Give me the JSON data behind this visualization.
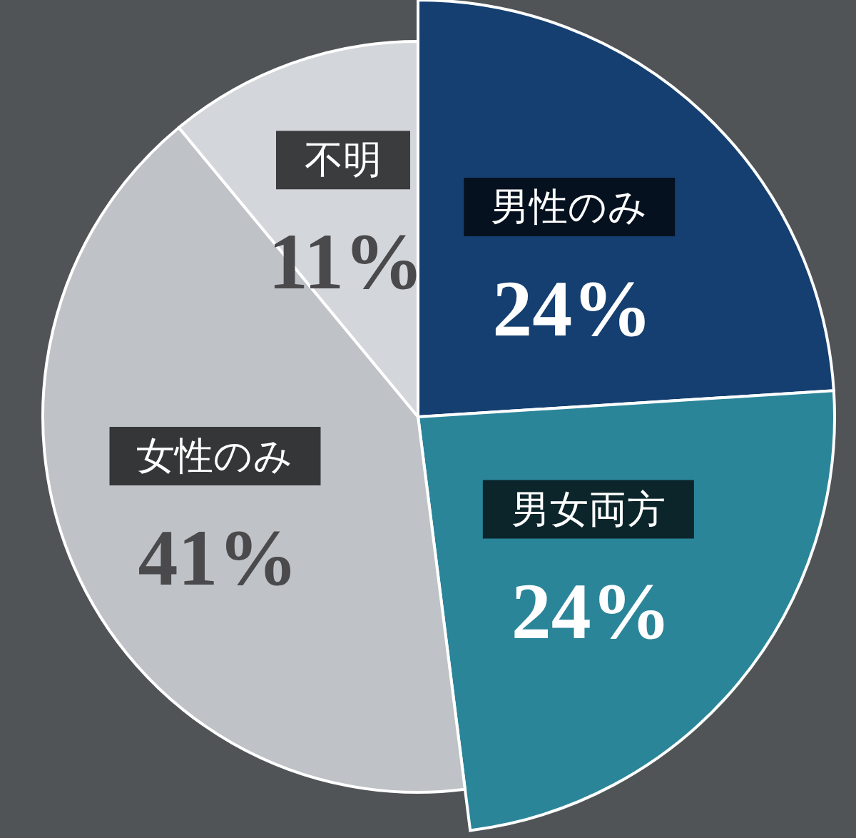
{
  "chart_data": {
    "type": "pie",
    "categories": [
      "男性のみ",
      "男女両方",
      "女性のみ",
      "不明"
    ],
    "values": [
      24,
      24,
      41,
      11
    ],
    "colors": [
      "#143f70",
      "#2a8599",
      "#bfc2c6",
      "#d3d6da"
    ],
    "value_labels": [
      "24%",
      "24%",
      "41%",
      "11%"
    ]
  }
}
